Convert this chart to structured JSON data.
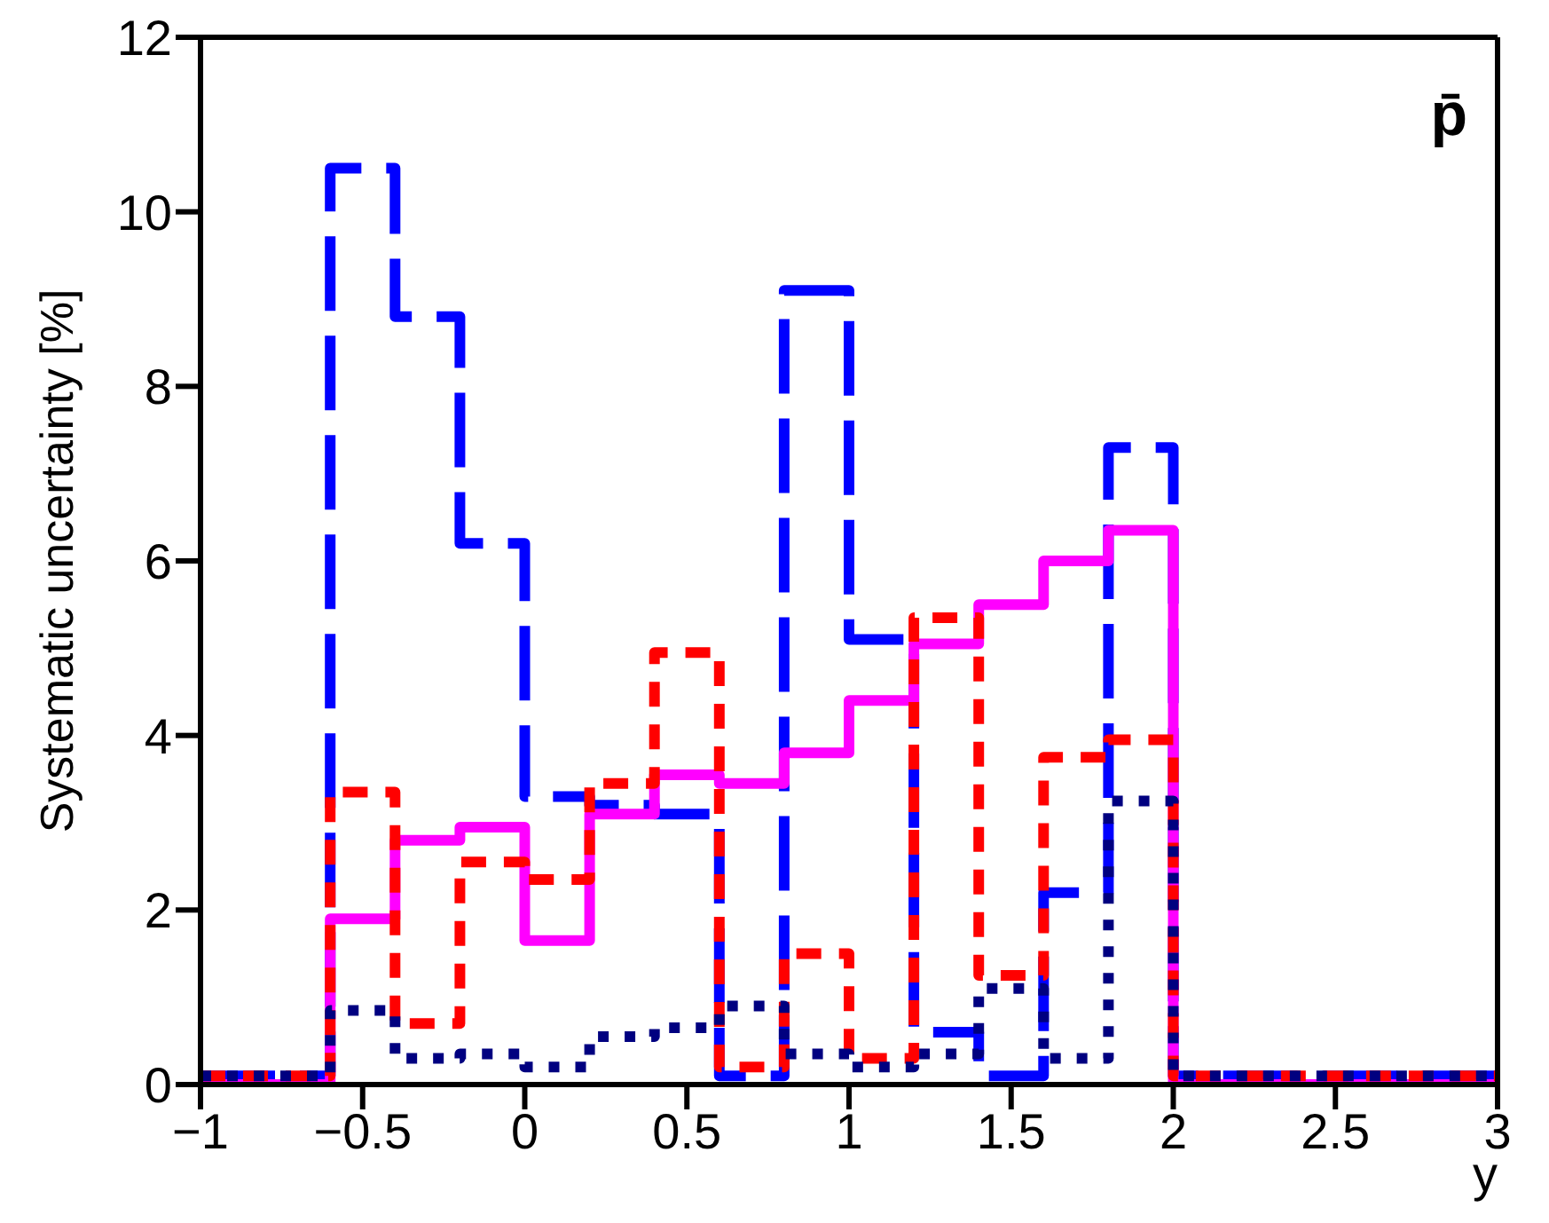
{
  "chart_data": {
    "type": "histogram",
    "xlabel": "y",
    "ylabel": "Systematic uncertainty [%]",
    "annotations": [
      "p̄"
    ],
    "bins": [
      -1,
      -0.6,
      -0.4,
      -0.2,
      0,
      0.2,
      0.4,
      0.6,
      0.8,
      1.0,
      1.2,
      1.4,
      1.6,
      1.8,
      2.0,
      3
    ],
    "series": [
      {
        "color": "#0000ff",
        "line_style": "dashed",
        "values": [
          0.1,
          10.5,
          8.8,
          6.2,
          3.3,
          3.2,
          3.1,
          0.1,
          9.1,
          5.1,
          0.6,
          0.1,
          2.2,
          7.3,
          0.1
        ]
      },
      {
        "color": "#ff00ff",
        "line_style": "solid",
        "values": [
          0,
          1.9,
          2.8,
          2.95,
          1.65,
          3.1,
          3.55,
          3.45,
          3.8,
          4.4,
          5.05,
          5.5,
          6.0,
          6.35,
          0
        ]
      },
      {
        "color": "#ff0000",
        "line_style": "dashed",
        "values": [
          0.1,
          3.35,
          0.7,
          2.55,
          2.35,
          3.45,
          4.95,
          0.2,
          1.5,
          0.3,
          5.35,
          1.25,
          3.75,
          3.95,
          0.1
        ]
      },
      {
        "color": "#000080",
        "line_style": "dotted",
        "values": [
          0.1,
          0.85,
          0.3,
          0.35,
          0.2,
          0.55,
          0.65,
          0.9,
          0.35,
          0.2,
          0.35,
          1.1,
          0.3,
          3.25,
          0.1
        ]
      }
    ],
    "xlim": [
      -1,
      3
    ],
    "xticks": [
      {
        "value": -1,
        "label": "−1"
      },
      {
        "value": -0.5,
        "label": "−0.5"
      },
      0,
      0.5,
      1,
      1.5,
      2,
      2.5,
      3
    ],
    "ylim": [
      0,
      12
    ],
    "yticks": [
      0,
      2,
      4,
      6,
      8,
      10,
      12
    ]
  }
}
